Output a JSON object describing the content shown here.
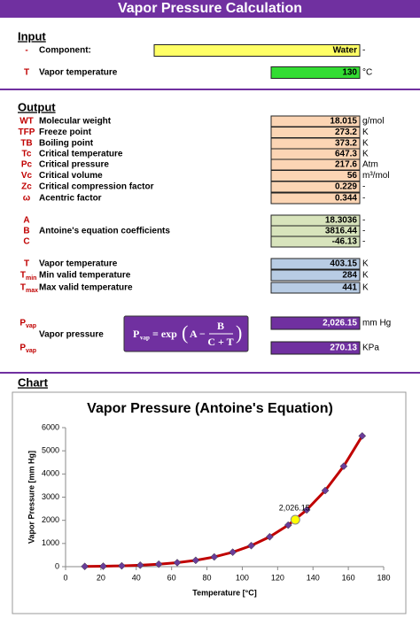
{
  "title": "Vapor Pressure Calculation",
  "input": {
    "heading": "Input",
    "rows": [
      {
        "symbol": "-",
        "label": "Component:",
        "value": "Water",
        "unit": "-",
        "fill": "#ffff66"
      },
      {
        "symbol": "T",
        "label": "Vapor temperature",
        "value": "130",
        "unit": "°C",
        "fill": "#33dd33"
      }
    ]
  },
  "output": {
    "heading": "Output",
    "properties": {
      "fill": "#fcd5b4",
      "rows": [
        {
          "symbol": "WT",
          "label": "Molecular weight",
          "value": "18.015",
          "unit": "g/mol"
        },
        {
          "symbol": "TFP",
          "label": "Freeze point",
          "value": "273.2",
          "unit": "K"
        },
        {
          "symbol": "TB",
          "label": "Boiling point",
          "value": "373.2",
          "unit": "K"
        },
        {
          "symbol": "Tc",
          "label": "Critical temperature",
          "value": "647.3",
          "unit": "K"
        },
        {
          "symbol": "Pc",
          "label": "Critical pressure",
          "value": "217.6",
          "unit": "Atm"
        },
        {
          "symbol": "Vc",
          "label": "Critical volume",
          "value": "56",
          "unit": "m³/mol"
        },
        {
          "symbol": "Zc",
          "label": "Critical compression factor",
          "value": "0.229",
          "unit": "-"
        },
        {
          "symbol": "ω",
          "label": "Acentric factor",
          "value": "0.344",
          "unit": "-"
        }
      ]
    },
    "antoine": {
      "fill": "#d8e4bc",
      "label": "Antoine's equation coefficients",
      "rows": [
        {
          "symbol": "A",
          "value": "18.3036",
          "unit": "-"
        },
        {
          "symbol": "B",
          "value": "3816.44",
          "unit": "-"
        },
        {
          "symbol": "C",
          "value": "-46.13",
          "unit": "-"
        }
      ]
    },
    "limits": {
      "fill": "#b8cce4",
      "rows": [
        {
          "symbol": "T",
          "label": "Vapor temperature",
          "value": "403.15",
          "unit": "K"
        },
        {
          "symbol": "T",
          "sub": "min",
          "label": "Min valid temperature",
          "value": "284",
          "unit": "K"
        },
        {
          "symbol": "T",
          "sub": "max",
          "label": "Max valid temperature",
          "value": "441",
          "unit": "K"
        }
      ]
    },
    "pressure": {
      "fill": "#7030a0",
      "label": "Vapor pressure",
      "rows": [
        {
          "symbol": "P",
          "sub": "vap",
          "value": "2,026.15",
          "unit": "mm Hg"
        },
        {
          "symbol": "P",
          "sub": "vap",
          "value": "270.13",
          "unit": "KPa"
        }
      ]
    },
    "formula": {
      "lhs": "P",
      "lhs_sub": "vap",
      "func": "= exp",
      "open": "(",
      "a": "A −",
      "num": "B",
      "den": "C + T",
      "close": ")"
    }
  },
  "chart_section": {
    "heading": "Chart"
  },
  "chart_data": {
    "type": "line",
    "title": "Vapor Pressure (Antoine's Equation)",
    "x_label": "Temperature [°C]",
    "y_label": "Vapor Pressure [mm Hg]",
    "xlim": [
      0,
      180
    ],
    "xticks": [
      0,
      20,
      40,
      60,
      80,
      100,
      120,
      140,
      160,
      180
    ],
    "ylim": [
      0,
      6000
    ],
    "yticks": [
      0,
      1000,
      2000,
      3000,
      4000,
      5000,
      6000
    ],
    "series": [
      {
        "color": "#c00000",
        "marker_color": "#6a3d9a",
        "x": [
          10.85,
          21.32,
          31.78,
          42.25,
          52.72,
          63.18,
          73.65,
          84.12,
          94.58,
          105.05,
          115.52,
          125.98,
          136.45,
          146.92,
          157.38,
          167.85
        ],
        "values": [
          9.58,
          18.83,
          35.06,
          62.2,
          105.7,
          172.9,
          273.3,
          418.9,
          624.6,
          907.5,
          1289,
          1793,
          2448,
          3284,
          4335,
          5641
        ]
      }
    ],
    "highlight": {
      "x": 130,
      "value": 2026.15,
      "value_label": "2,026.15",
      "color": "#ffff00"
    }
  }
}
